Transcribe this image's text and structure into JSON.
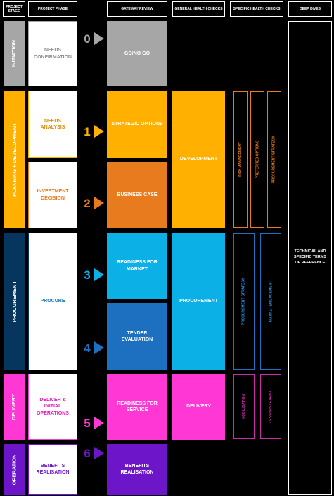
{
  "headers": {
    "stage": "PROJECT STAGE",
    "phase": "PROJECT PHASE",
    "gateway": "GATEWAY REVIEW",
    "general": "GENERAL HEALTH CHECKS",
    "specific": "SPECIFIC HEALTH CHECKS",
    "deep": "DEEP DIVES"
  },
  "stages": {
    "initiation": "INITIATION",
    "planning": "PLANNING + DEVELOPMENT",
    "procurement": "PROCUREMENT",
    "delivery": "DELIVERY",
    "operation": "OPERATION"
  },
  "phases": {
    "needs_confirmation": "NEEDS CONFIRMATION",
    "needs_analysis": "NEEDS ANALYSIS",
    "investment_decision": "INVESTMENT DECISION",
    "procure": "PROCURE",
    "deliver_initial_operations": "DELIVER & INITIAL OPERATIONS",
    "benefits_realisation": "BENEFITS REALISATION"
  },
  "gate_numbers": {
    "g0": "0",
    "g1": "1",
    "g2": "2",
    "g3": "3",
    "g4": "4",
    "g5": "5",
    "g6": "6"
  },
  "gateways": {
    "go_no_go": "GO/NO GO",
    "strategic_options": "STRATEGIC OPTIONS",
    "business_case": "BUSINESS CASE",
    "readiness_for_market": "READINESS FOR MARKET",
    "tender_evaluation": "TENDER EVALUATION",
    "readiness_for_service": "READINESS FOR SERVICE",
    "benefits_realisation": "BENEFITS REALISATION"
  },
  "general_health_checks": {
    "development": "DEVELOPMENT",
    "procurement": "PROCUREMENT",
    "delivery": "DELIVERY"
  },
  "specific_health_checks": {
    "planning": [
      "RISK MANAGEMENT",
      "PREFERRED OPTIONS",
      "PROCUREMENT STRATEGY"
    ],
    "procurement": [
      "PROCUREMENT STRATEGY",
      "MARKET ENGAGEMENT"
    ],
    "delivery": [
      "MOBILISATION",
      "LESSONS LEARNT"
    ]
  },
  "deep_dives": "TECHNICAL AND SPECIFIC TERMS OF REFERENCE",
  "colors": {
    "initiation": "#a6a6a6",
    "planning": "#ffb000",
    "business_case": "#e87b1e",
    "procurement_stage": "#06365e",
    "procurement_gate": "#0bb0e6",
    "tender": "#1d6fbf",
    "delivery": "#ff37d4",
    "operation": "#6d16c9"
  }
}
